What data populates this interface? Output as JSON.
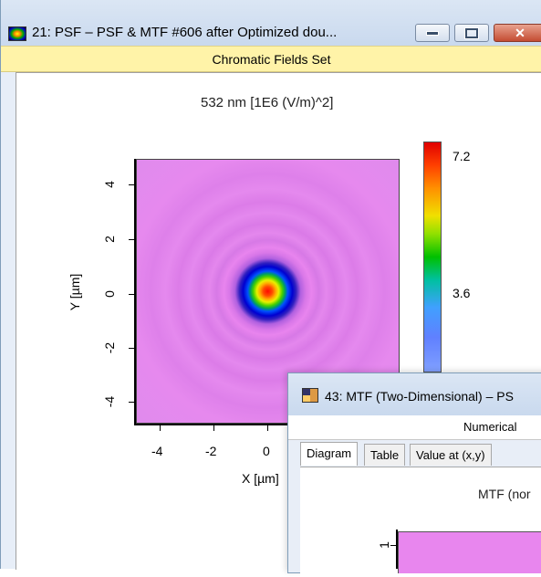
{
  "psf_window": {
    "title": "21: PSF – PSF & MTF #606 after Optimized dou...",
    "info_bar": "Chromatic Fields Set",
    "plot_title": "532 nm  [1E6 (V/m)^2]",
    "x_axis_title": "X [µm]",
    "y_axis_title": "Y [µm]",
    "x_ticks": [
      "-4",
      "-2",
      "0"
    ],
    "y_ticks": [
      "4",
      "2",
      "0",
      "-2",
      "-4"
    ],
    "colorbar_labels": [
      "7.2",
      "3.6"
    ],
    "colors": {
      "info_bar": "#fff3a8",
      "field_background": "#e886ee"
    }
  },
  "mtf_window": {
    "title": "43: MTF (Two-Dimensional) – PS",
    "info_bar": "Numerical",
    "tabs": [
      {
        "label": "Diagram",
        "active": true
      },
      {
        "label": "Table",
        "active": false
      },
      {
        "label": "Value at (x,y)",
        "active": false
      }
    ],
    "plot_title": "MTF (nor",
    "y_ticks": [
      "1"
    ]
  }
}
